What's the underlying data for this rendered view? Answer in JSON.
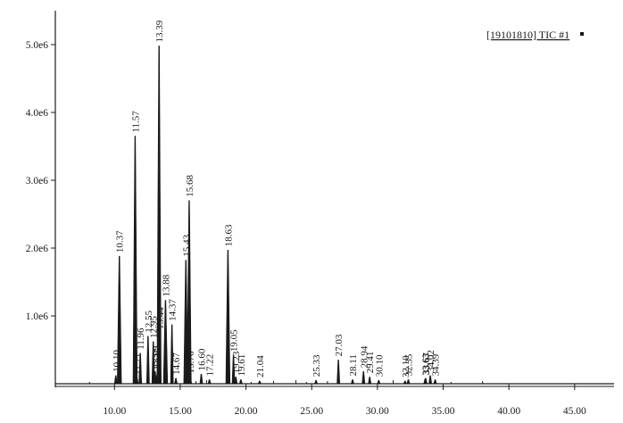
{
  "chart_data": {
    "type": "line",
    "title": "",
    "xlabel": "",
    "ylabel": "",
    "xlim": [
      5.5,
      48
    ],
    "ylim": [
      0,
      5.5
    ],
    "grid": false,
    "legend": {
      "position": "top-right",
      "label": "[19101810] TIC #1"
    },
    "x_ticks": [
      {
        "value": 10,
        "label": "10.00"
      },
      {
        "value": 15,
        "label": "15.00"
      },
      {
        "value": 20,
        "label": "20.00"
      },
      {
        "value": 25,
        "label": "25.00"
      },
      {
        "value": 30,
        "label": "30.00"
      },
      {
        "value": 35,
        "label": "35.00"
      },
      {
        "value": 40,
        "label": "40.00"
      },
      {
        "value": 45,
        "label": "45.00"
      }
    ],
    "y_ticks": [
      {
        "value": 1,
        "label": "1.0e6"
      },
      {
        "value": 2,
        "label": "2.0e6"
      },
      {
        "value": 3,
        "label": "3.0e6"
      },
      {
        "value": 4,
        "label": "4.0e6"
      },
      {
        "value": 5,
        "label": "5.0e6"
      }
    ],
    "y_unit_note": "intensity values expressed in millions (e6)",
    "series": [
      {
        "name": "[19101810] TIC #1",
        "peaks": [
          {
            "rt": 10.1,
            "label": "10.10",
            "height": 0.12
          },
          {
            "rt": 10.37,
            "label": "10.37",
            "height": 1.88
          },
          {
            "rt": 11.57,
            "label": "11.57",
            "height": 3.65
          },
          {
            "rt": 11.71,
            "label": "11.71",
            "height": 0.08
          },
          {
            "rt": 11.96,
            "label": "11.96",
            "height": 0.45
          },
          {
            "rt": 12.55,
            "label": "12.55",
            "height": 0.7
          },
          {
            "rt": 12.95,
            "label": "12.95",
            "height": 0.62
          },
          {
            "rt": 13.09,
            "label": "13.09",
            "height": 0.18
          },
          {
            "rt": 13.25,
            "label": "13.25",
            "height": 0.15
          },
          {
            "rt": 13.39,
            "label": "13.39",
            "height": 4.98
          },
          {
            "rt": 13.44,
            "label": "13.44",
            "height": 0.75
          },
          {
            "rt": 13.88,
            "label": "13.88",
            "height": 1.23
          },
          {
            "rt": 14.37,
            "label": "14.37",
            "height": 0.87
          },
          {
            "rt": 14.67,
            "label": "14.67",
            "height": 0.08
          },
          {
            "rt": 15.43,
            "label": "15.43",
            "height": 1.82
          },
          {
            "rt": 15.68,
            "label": "15.68",
            "height": 2.7
          },
          {
            "rt": 15.76,
            "label": "15.76",
            "height": 0.1
          },
          {
            "rt": 16.6,
            "label": "16.60",
            "height": 0.14
          },
          {
            "rt": 17.22,
            "label": "17.22",
            "height": 0.06
          },
          {
            "rt": 18.63,
            "label": "18.63",
            "height": 1.97
          },
          {
            "rt": 19.05,
            "label": "19.05",
            "height": 0.42
          },
          {
            "rt": 19.23,
            "label": "19.23",
            "height": 0.1
          },
          {
            "rt": 19.61,
            "label": "19.61",
            "height": 0.06
          },
          {
            "rt": 21.04,
            "label": "21.04",
            "height": 0.04
          },
          {
            "rt": 25.33,
            "label": "25.33",
            "height": 0.05
          },
          {
            "rt": 27.03,
            "label": "27.03",
            "height": 0.35
          },
          {
            "rt": 28.11,
            "label": "28.11",
            "height": 0.06
          },
          {
            "rt": 28.94,
            "label": "28.94",
            "height": 0.18
          },
          {
            "rt": 29.41,
            "label": "29.41",
            "height": 0.1
          },
          {
            "rt": 30.1,
            "label": "30.10",
            "height": 0.05
          },
          {
            "rt": 32.1,
            "label": "32.10",
            "height": 0.04
          },
          {
            "rt": 32.35,
            "label": "32.35",
            "height": 0.06
          },
          {
            "rt": 33.63,
            "label": "33.63",
            "height": 0.07
          },
          {
            "rt": 33.67,
            "label": "33.67",
            "height": 0.08
          },
          {
            "rt": 34.02,
            "label": "34.02",
            "height": 0.12
          },
          {
            "rt": 34.39,
            "label": "34.39",
            "height": 0.06
          }
        ]
      }
    ]
  }
}
